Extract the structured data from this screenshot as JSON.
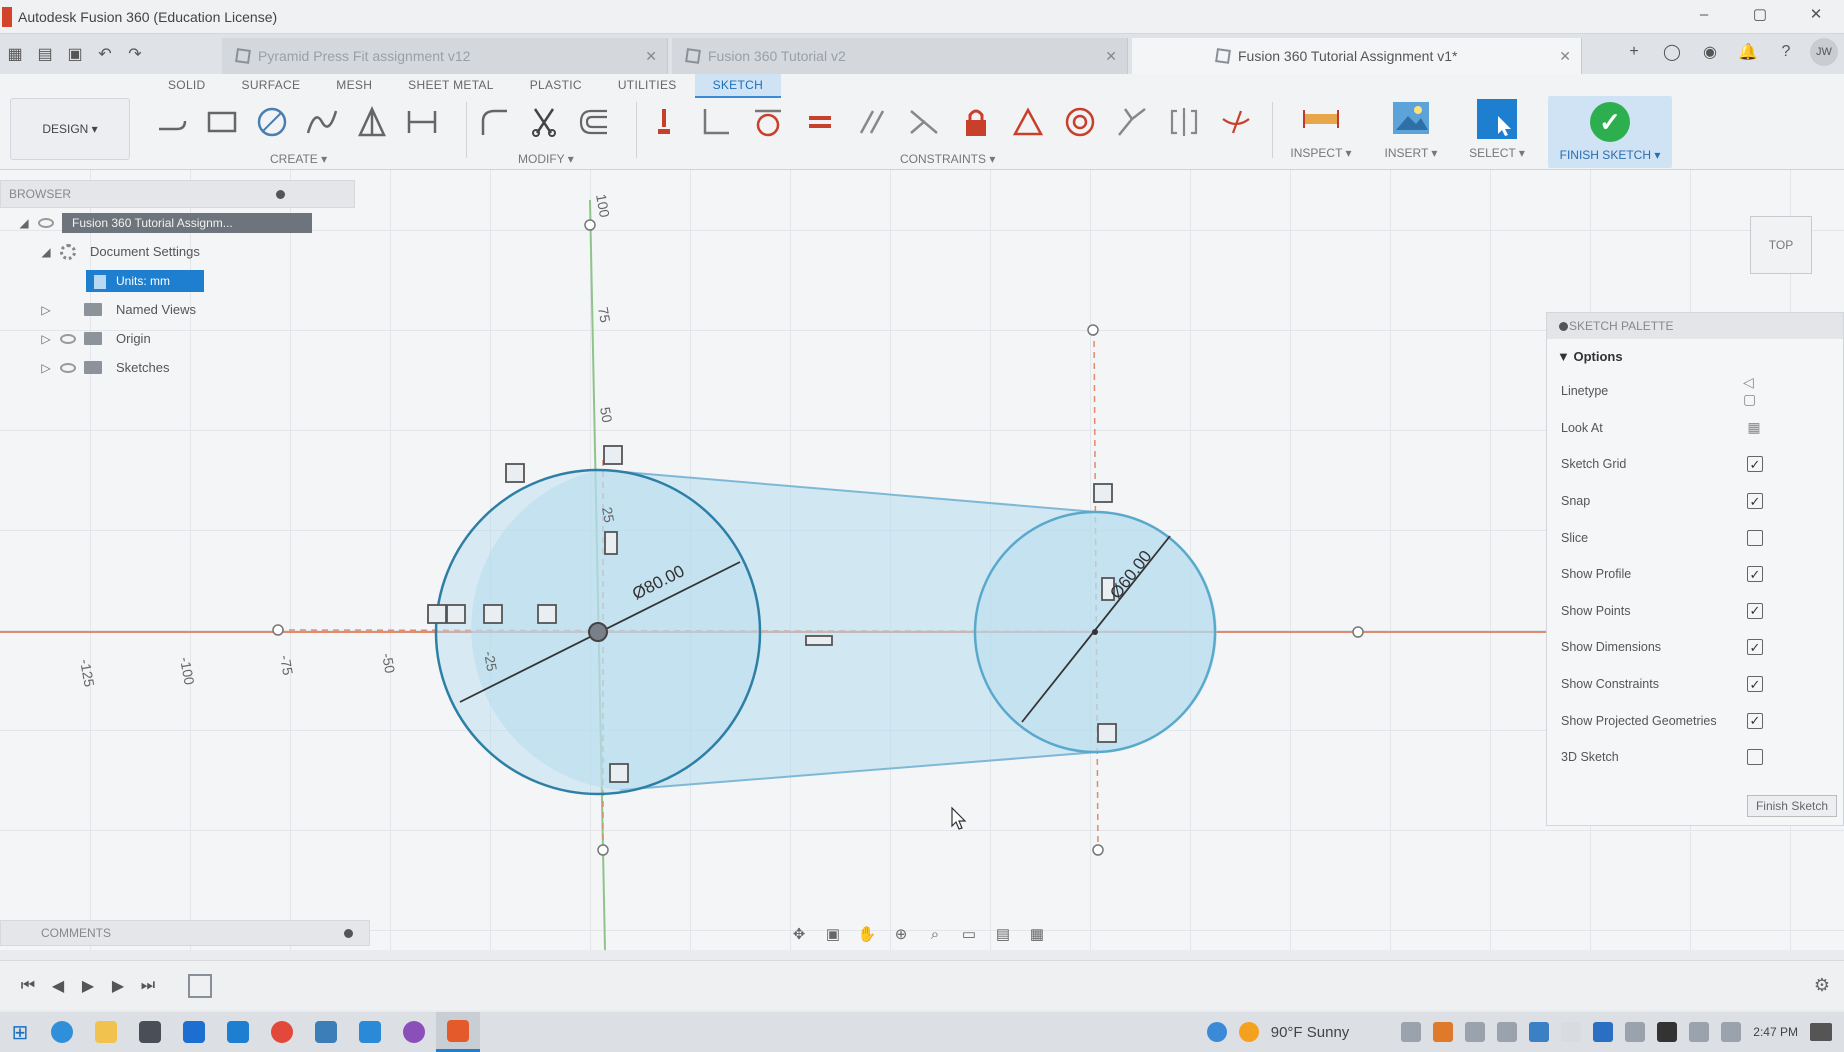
{
  "window": {
    "title": "Autodesk Fusion 360 (Education License)",
    "minimize": "–",
    "maximize": "▢",
    "close": "✕"
  },
  "document_tabs": [
    {
      "label": "Pyramid Press Fit assignment v12",
      "active": false
    },
    {
      "label": "Fusion 360 Tutorial v2",
      "active": false
    },
    {
      "label": "Fusion 360 Tutorial Assignment v1*",
      "active": true
    }
  ],
  "user_initials": "JW",
  "toolbar": {
    "workspace": "DESIGN ▾",
    "tabs": [
      "SOLID",
      "SURFACE",
      "MESH",
      "SHEET METAL",
      "PLASTIC",
      "UTILITIES",
      "SKETCH"
    ],
    "active_tab": "SKETCH",
    "groups": {
      "create": "CREATE ▾",
      "modify": "MODIFY ▾",
      "constraints": "CONSTRAINTS ▾",
      "inspect": "INSPECT ▾",
      "insert": "INSERT ▾",
      "select": "SELECT ▾",
      "finish": "FINISH SKETCH ▾"
    }
  },
  "browser": {
    "title": "BROWSER",
    "items": [
      {
        "label": "Fusion 360 Tutorial Assignm...",
        "kind": "document"
      },
      {
        "label": "Document Settings",
        "kind": "settings"
      },
      {
        "label": "Units: mm",
        "kind": "units"
      },
      {
        "label": "Named Views",
        "kind": "folder"
      },
      {
        "label": "Origin",
        "kind": "folder"
      },
      {
        "label": "Sketches",
        "kind": "folder"
      }
    ]
  },
  "sketch": {
    "dimensions": {
      "large_circle_diameter": "Ø80.00",
      "small_circle_diameter": "Ø60.00"
    },
    "axis_ticks": {
      "horizontal": [
        "-125",
        "-100",
        "-75",
        "-50",
        "-25"
      ],
      "vertical": [
        "100",
        "75",
        "50",
        "25"
      ]
    }
  },
  "viewcube": {
    "face": "TOP"
  },
  "palette": {
    "title": "SKETCH PALETTE",
    "section": "Options",
    "options": [
      {
        "label": "Linetype",
        "control": "icon"
      },
      {
        "label": "Look At",
        "control": "icon"
      },
      {
        "label": "Sketch Grid",
        "checked": true
      },
      {
        "label": "Snap",
        "checked": true
      },
      {
        "label": "Slice",
        "checked": false
      },
      {
        "label": "Show Profile",
        "checked": true
      },
      {
        "label": "Show Points",
        "checked": true
      },
      {
        "label": "Show Dimensions",
        "checked": true
      },
      {
        "label": "Show Constraints",
        "checked": true
      },
      {
        "label": "Show Projected Geometries",
        "checked": true
      },
      {
        "label": "3D Sketch",
        "checked": false
      }
    ],
    "finish_button": "Finish Sketch"
  },
  "comments": {
    "title": "COMMENTS"
  },
  "taskbar": {
    "weather": "90°F  Sunny",
    "time": "2:47 PM"
  },
  "colors": {
    "accent": "#1e7fd1",
    "finish_green": "#2eaf4f",
    "profile_fill": "#b5dcee",
    "circle_stroke": "#2e7fa6",
    "axis_red": "#e08a6e",
    "axis_green": "#8fc48a"
  }
}
